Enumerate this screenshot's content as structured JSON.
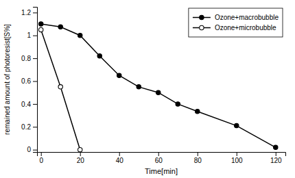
{
  "chart_data": {
    "type": "line",
    "x_label": "Time[min]",
    "y_label": "remained amount of photoresist[S%]",
    "series": [
      {
        "name": "Ozone+macrobubble",
        "color": "#000000",
        "marker": "circle",
        "x": [
          0,
          10,
          20,
          30,
          40,
          50,
          60,
          70,
          80,
          100,
          120
        ],
        "values": [
          1.1,
          1.075,
          1.0,
          0.82,
          0.65,
          0.55,
          0.5,
          0.4,
          0.335,
          0.21,
          0.02
        ]
      },
      {
        "name": "Ozone+microbubble",
        "color": "#000000",
        "marker": "open-circle",
        "x": [
          0,
          10,
          20
        ],
        "values": [
          1.05,
          0.55,
          0.0
        ]
      }
    ],
    "xlim": [
      -2,
      125
    ],
    "ylim": [
      -0.02,
      1.25
    ],
    "xticks": [
      0,
      20,
      40,
      60,
      80,
      100,
      120
    ],
    "yticks": [
      0,
      0.2,
      0.4,
      0.6,
      0.8,
      1,
      1.2
    ],
    "legend": "upper right"
  }
}
